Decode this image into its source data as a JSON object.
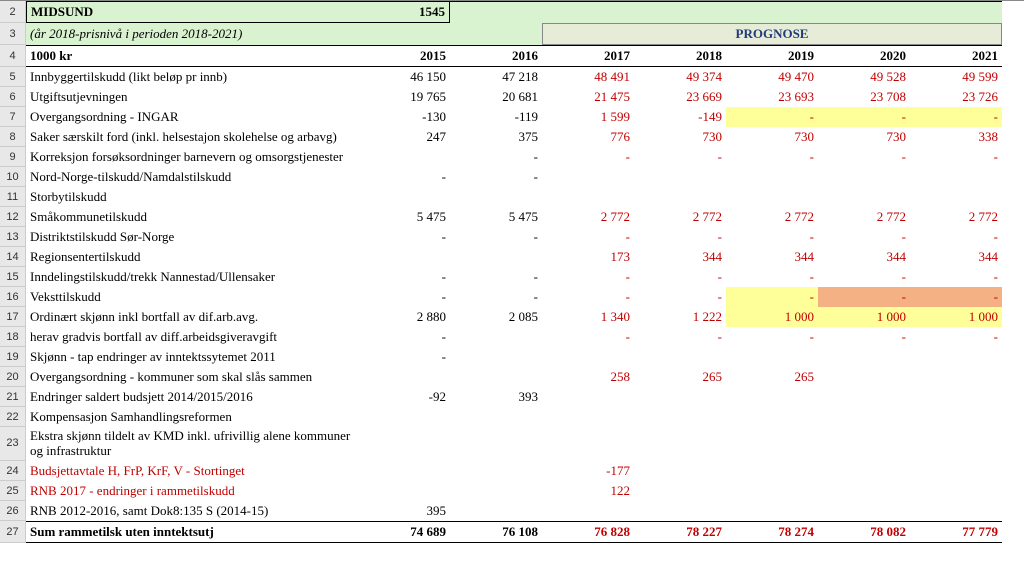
{
  "header": {
    "municipality": "MIDSUND",
    "code": "1545",
    "subtitle": "(år 2018-prisnivå i perioden 2018-2021)",
    "prognose_label": "PROGNOSE",
    "unit_label": "1000 kr",
    "years": [
      "2015",
      "2016",
      "2017",
      "2018",
      "2019",
      "2020",
      "2021"
    ]
  },
  "rows": [
    {
      "n": "5",
      "label": "Innbyggertilskudd (likt beløp pr innb)",
      "v": [
        "46 150",
        "47 218",
        "48 491",
        "49 374",
        "49 470",
        "49 528",
        "49 599"
      ],
      "red": [
        0,
        0,
        1,
        1,
        1,
        1,
        1
      ]
    },
    {
      "n": "6",
      "label": "Utgiftsutjevningen",
      "v": [
        "19 765",
        "20 681",
        "21 475",
        "23 669",
        "23 693",
        "23 708",
        "23 726"
      ],
      "red": [
        0,
        0,
        1,
        1,
        1,
        1,
        1
      ]
    },
    {
      "n": "7",
      "label": "Overgangsordning - INGAR",
      "v": [
        "-130",
        "-119",
        "1 599",
        "-149",
        "-",
        "-",
        "-"
      ],
      "red": [
        0,
        0,
        1,
        1,
        1,
        1,
        1
      ],
      "hl": [
        "",
        "",
        "",
        "",
        "y",
        "y",
        "y"
      ]
    },
    {
      "n": "8",
      "label": "Saker særskilt ford (inkl. helsestajon skolehelse og arbavg)",
      "v": [
        "247",
        "375",
        "776",
        "730",
        "730",
        "730",
        "338"
      ],
      "red": [
        0,
        0,
        1,
        1,
        1,
        1,
        1
      ]
    },
    {
      "n": "9",
      "label": "Korreksjon forsøksordninger barnevern og omsorgstjenester",
      "v": [
        "",
        "-",
        "-",
        "-",
        "-",
        "-",
        "-"
      ],
      "red": [
        0,
        0,
        1,
        1,
        1,
        1,
        1
      ]
    },
    {
      "n": "10",
      "label": "Nord-Norge-tilskudd/Namdalstilskudd",
      "v": [
        "-",
        "-",
        "",
        "",
        "",
        "",
        ""
      ],
      "red": [
        0,
        0,
        0,
        0,
        0,
        0,
        0
      ]
    },
    {
      "n": "11",
      "label": "Storbytilskudd",
      "v": [
        "",
        "",
        "",
        "",
        "",
        "",
        ""
      ],
      "red": [
        0,
        0,
        0,
        0,
        0,
        0,
        0
      ]
    },
    {
      "n": "12",
      "label": "Småkommunetilskudd",
      "v": [
        "5 475",
        "5 475",
        "2 772",
        "2 772",
        "2 772",
        "2 772",
        "2 772"
      ],
      "red": [
        0,
        0,
        1,
        1,
        1,
        1,
        1
      ]
    },
    {
      "n": "13",
      "label": "Distriktstilskudd Sør-Norge",
      "v": [
        "-",
        "-",
        "-",
        "-",
        "-",
        "-",
        "-"
      ],
      "red": [
        0,
        0,
        1,
        1,
        1,
        1,
        1
      ]
    },
    {
      "n": "14",
      "label": "Regionsentertilskudd",
      "v": [
        "",
        "",
        "173",
        "344",
        "344",
        "344",
        "344"
      ],
      "red": [
        0,
        0,
        1,
        1,
        1,
        1,
        1
      ]
    },
    {
      "n": "15",
      "label": "Inndelingstilskudd/trekk Nannestad/Ullensaker",
      "v": [
        "-",
        "-",
        "-",
        "-",
        "-",
        "-",
        "-"
      ],
      "red": [
        0,
        0,
        1,
        1,
        1,
        1,
        1
      ]
    },
    {
      "n": "16",
      "label": "Veksttilskudd",
      "v": [
        "-",
        "-",
        "-",
        "-",
        "-",
        "-",
        "-"
      ],
      "red": [
        0,
        0,
        1,
        1,
        1,
        1,
        1
      ],
      "hl": [
        "",
        "",
        "",
        "",
        "y",
        "o",
        "o"
      ]
    },
    {
      "n": "17",
      "label": "Ordinært skjønn inkl bortfall av dif.arb.avg.",
      "v": [
        "2 880",
        "2 085",
        "1 340",
        "1 222",
        "1 000",
        "1 000",
        "1 000"
      ],
      "red": [
        0,
        0,
        1,
        1,
        1,
        1,
        1
      ],
      "hl": [
        "",
        "",
        "",
        "",
        "y",
        "y",
        "y"
      ]
    },
    {
      "n": "18",
      "label": "   herav gradvis bortfall av diff.arbeidsgiveravgift",
      "v": [
        "-",
        "",
        "-",
        "-",
        "-",
        "-",
        "-"
      ],
      "red": [
        0,
        0,
        1,
        1,
        1,
        1,
        1
      ]
    },
    {
      "n": "19",
      "label": "Skjønn - tap endringer av inntektssytemet 2011",
      "v": [
        "-",
        "",
        "",
        "",
        "",
        "",
        ""
      ],
      "red": [
        0,
        0,
        0,
        0,
        0,
        0,
        0
      ]
    },
    {
      "n": "20",
      "label": "Overgangsordning - kommuner som skal slås sammen",
      "v": [
        "",
        "",
        "258",
        "265",
        "265",
        "",
        ""
      ],
      "red": [
        0,
        0,
        1,
        1,
        1,
        0,
        0
      ]
    },
    {
      "n": "21",
      "label": "Endringer saldert budsjett 2014/2015/2016",
      "v": [
        "-92",
        "393",
        "",
        "",
        "",
        "",
        ""
      ],
      "red": [
        0,
        0,
        0,
        0,
        0,
        0,
        0
      ]
    },
    {
      "n": "22",
      "label": "Kompensasjon Samhandlingsreformen",
      "v": [
        "",
        "",
        "",
        "",
        "",
        "",
        ""
      ],
      "red": [
        0,
        0,
        0,
        0,
        0,
        0,
        0
      ]
    },
    {
      "n": "23",
      "label": "Ekstra skjønn tildelt av KMD inkl. ufrivillig alene kommuner og infrastruktur",
      "tall": true,
      "v": [
        "",
        "",
        "",
        "",
        "",
        "",
        ""
      ],
      "red": [
        0,
        0,
        0,
        0,
        0,
        0,
        0
      ]
    },
    {
      "n": "24",
      "label": "Budsjettavtale H, FrP, KrF, V - Stortinget",
      "label_red": true,
      "v": [
        "",
        "",
        "-177",
        "",
        "",
        "",
        ""
      ],
      "red": [
        0,
        0,
        1,
        0,
        0,
        0,
        0
      ]
    },
    {
      "n": "25",
      "label": "RNB 2017 - endringer i rammetilskudd",
      "label_red": true,
      "v": [
        "",
        "",
        "122",
        "",
        "",
        "",
        ""
      ],
      "red": [
        0,
        0,
        1,
        0,
        0,
        0,
        0
      ]
    },
    {
      "n": "26",
      "label": "RNB 2012-2016, samt Dok8:135 S (2014-15)",
      "v": [
        "395",
        "",
        "",
        "",
        "",
        "",
        ""
      ],
      "red": [
        0,
        0,
        0,
        0,
        0,
        0,
        0
      ]
    }
  ],
  "sum": {
    "n": "27",
    "label": "Sum rammetilsk uten inntektsutj",
    "v": [
      "74 689",
      "76 108",
      "76 828",
      "78 227",
      "78 274",
      "78 082",
      "77 779"
    ],
    "red": [
      0,
      0,
      1,
      1,
      1,
      1,
      1
    ]
  },
  "colors": {
    "header_green": "#d9f2d0",
    "prognose_bg": "#e6ecd8",
    "prognose_fg": "#1f3c78",
    "highlight_yellow": "#ffff99",
    "highlight_orange": "#f4b183",
    "red_text": "#c00000",
    "rownum_bg": "#e8e8e8"
  }
}
